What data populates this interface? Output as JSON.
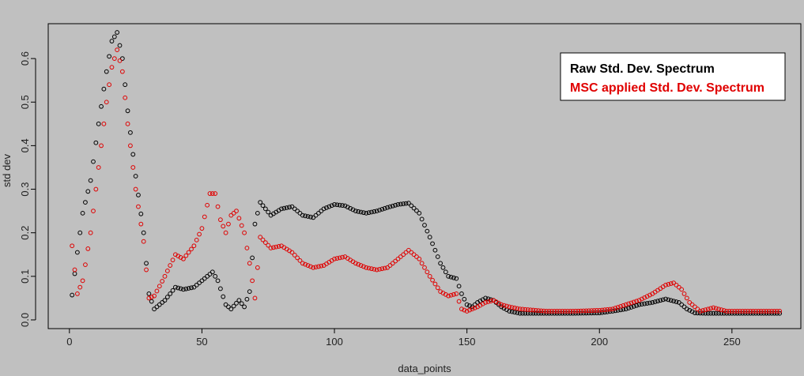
{
  "chart_data": {
    "type": "scatter",
    "title": "",
    "xlabel": "data_points",
    "ylabel": "std dev",
    "xlim": [
      -8,
      276
    ],
    "ylim": [
      -0.02,
      0.68
    ],
    "x_ticks": [
      0,
      50,
      100,
      150,
      200,
      250
    ],
    "y_ticks": [
      0.0,
      0.1,
      0.2,
      0.3,
      0.4,
      0.5,
      0.6
    ],
    "x_tick_labels": [
      "0",
      "50",
      "100",
      "150",
      "200",
      "250"
    ],
    "y_tick_labels": [
      "0.0",
      "0.1",
      "0.2",
      "0.3",
      "0.4",
      "0.5",
      "0.6"
    ],
    "grid": false,
    "legend_position": "top-right",
    "n_points": 268,
    "series": [
      {
        "name": "Raw Std. Dev. Spectrum",
        "color": "#000000",
        "marker": "open-circle",
        "key_x": [
          1,
          3,
          5,
          8,
          11,
          14,
          16,
          18,
          20,
          22,
          25,
          28,
          30,
          32,
          36,
          40,
          43,
          47,
          51,
          54,
          56,
          59,
          61,
          64,
          66,
          68,
          70,
          72,
          76,
          80,
          84,
          88,
          92,
          96,
          100,
          104,
          108,
          112,
          116,
          120,
          124,
          128,
          132,
          136,
          140,
          143,
          146,
          148,
          150,
          152,
          154,
          157,
          160,
          163,
          166,
          170,
          180,
          190,
          200,
          205,
          210,
          215,
          220,
          225,
          230,
          233,
          236,
          240,
          250,
          260,
          268
        ],
        "key_y": [
          0.057,
          0.155,
          0.245,
          0.32,
          0.45,
          0.57,
          0.64,
          0.66,
          0.6,
          0.48,
          0.33,
          0.2,
          0.06,
          0.025,
          0.045,
          0.075,
          0.07,
          0.075,
          0.095,
          0.11,
          0.09,
          0.035,
          0.025,
          0.045,
          0.03,
          0.065,
          0.22,
          0.27,
          0.24,
          0.255,
          0.26,
          0.24,
          0.235,
          0.255,
          0.265,
          0.262,
          0.25,
          0.245,
          0.25,
          0.258,
          0.265,
          0.268,
          0.245,
          0.19,
          0.13,
          0.1,
          0.095,
          0.06,
          0.035,
          0.03,
          0.04,
          0.05,
          0.045,
          0.03,
          0.02,
          0.015,
          0.015,
          0.015,
          0.016,
          0.02,
          0.025,
          0.035,
          0.04,
          0.048,
          0.04,
          0.025,
          0.016,
          0.015,
          0.015,
          0.015,
          0.015
        ]
      },
      {
        "name": "MSC applied Std. Dev. Spectrum",
        "color": "#e00000",
        "marker": "open-circle",
        "key_x": [
          1,
          3,
          5,
          8,
          11,
          14,
          16,
          18,
          20,
          22,
          25,
          28,
          30,
          32,
          36,
          40,
          43,
          47,
          50,
          53,
          55,
          57,
          59,
          61,
          63,
          66,
          68,
          70,
          72,
          76,
          80,
          84,
          88,
          92,
          96,
          100,
          104,
          108,
          112,
          116,
          120,
          124,
          128,
          132,
          136,
          140,
          143,
          146,
          148,
          150,
          152,
          154,
          157,
          160,
          163,
          166,
          170,
          180,
          190,
          200,
          205,
          210,
          215,
          220,
          225,
          228,
          231,
          234,
          238,
          243,
          248,
          255,
          268
        ],
        "key_y": [
          0.17,
          0.06,
          0.09,
          0.2,
          0.35,
          0.5,
          0.58,
          0.62,
          0.57,
          0.45,
          0.3,
          0.18,
          0.05,
          0.055,
          0.1,
          0.15,
          0.14,
          0.17,
          0.21,
          0.29,
          0.29,
          0.23,
          0.2,
          0.24,
          0.25,
          0.2,
          0.13,
          0.05,
          0.19,
          0.165,
          0.17,
          0.155,
          0.13,
          0.12,
          0.125,
          0.14,
          0.145,
          0.13,
          0.12,
          0.115,
          0.12,
          0.14,
          0.16,
          0.14,
          0.1,
          0.065,
          0.055,
          0.06,
          0.025,
          0.02,
          0.025,
          0.03,
          0.04,
          0.045,
          0.035,
          0.03,
          0.025,
          0.02,
          0.02,
          0.022,
          0.025,
          0.035,
          0.045,
          0.06,
          0.08,
          0.085,
          0.07,
          0.04,
          0.02,
          0.028,
          0.02,
          0.02,
          0.02
        ]
      }
    ]
  }
}
